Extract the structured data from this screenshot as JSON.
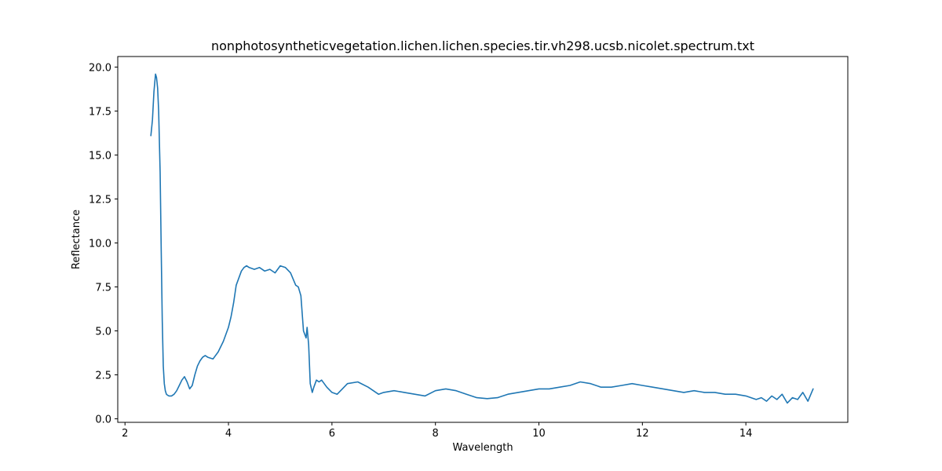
{
  "chart_data": {
    "type": "line",
    "title": "nonphotosyntheticvegetation.lichen.lichen.species.tir.vh298.ucsb.nicolet.spectrum.txt",
    "xlabel": "Wavelength",
    "ylabel": "Reflectance",
    "xlim": [
      1.86,
      15.97
    ],
    "ylim": [
      -0.2,
      20.6
    ],
    "xticks": [
      2,
      4,
      6,
      8,
      10,
      12,
      14
    ],
    "xtick_labels": [
      "2",
      "4",
      "6",
      "8",
      "10",
      "12",
      "14"
    ],
    "yticks": [
      0.0,
      2.5,
      5.0,
      7.5,
      10.0,
      12.5,
      15.0,
      17.5,
      20.0
    ],
    "ytick_labels": [
      "0.0",
      "2.5",
      "5.0",
      "7.5",
      "10.0",
      "12.5",
      "15.0",
      "17.5",
      "20.0"
    ],
    "grid": false,
    "series": [
      {
        "color": "#1f77b4",
        "x": [
          2.5,
          2.53,
          2.56,
          2.59,
          2.61,
          2.63,
          2.65,
          2.68,
          2.7,
          2.72,
          2.74,
          2.76,
          2.78,
          2.8,
          2.82,
          2.85,
          2.9,
          2.95,
          3.0,
          3.05,
          3.1,
          3.15,
          3.2,
          3.25,
          3.3,
          3.35,
          3.4,
          3.45,
          3.5,
          3.55,
          3.6,
          3.7,
          3.8,
          3.9,
          4.0,
          4.05,
          4.1,
          4.15,
          4.2,
          4.25,
          4.3,
          4.35,
          4.4,
          4.5,
          4.6,
          4.7,
          4.8,
          4.9,
          5.0,
          5.1,
          5.2,
          5.3,
          5.35,
          5.4,
          5.45,
          5.5,
          5.52,
          5.55,
          5.58,
          5.62,
          5.65,
          5.7,
          5.75,
          5.8,
          5.9,
          6.0,
          6.1,
          6.2,
          6.3,
          6.5,
          6.7,
          6.9,
          7.0,
          7.2,
          7.4,
          7.6,
          7.8,
          8.0,
          8.2,
          8.4,
          8.6,
          8.8,
          9.0,
          9.2,
          9.4,
          9.6,
          9.8,
          10.0,
          10.2,
          10.4,
          10.6,
          10.8,
          11.0,
          11.2,
          11.4,
          11.6,
          11.8,
          12.0,
          12.2,
          12.4,
          12.6,
          12.8,
          13.0,
          13.2,
          13.4,
          13.6,
          13.8,
          14.0,
          14.2,
          14.3,
          14.4,
          14.5,
          14.6,
          14.7,
          14.8,
          14.9,
          15.0,
          15.1,
          15.2,
          15.3
        ],
        "y": [
          16.1,
          17.0,
          18.6,
          19.6,
          19.4,
          18.8,
          17.5,
          14.0,
          9.5,
          5.6,
          3.0,
          2.0,
          1.6,
          1.4,
          1.35,
          1.3,
          1.3,
          1.4,
          1.6,
          1.9,
          2.2,
          2.4,
          2.1,
          1.7,
          1.9,
          2.5,
          3.0,
          3.3,
          3.5,
          3.6,
          3.5,
          3.4,
          3.8,
          4.4,
          5.2,
          5.8,
          6.6,
          7.6,
          8.0,
          8.4,
          8.6,
          8.7,
          8.6,
          8.5,
          8.6,
          8.4,
          8.5,
          8.3,
          8.7,
          8.6,
          8.3,
          7.6,
          7.5,
          7.0,
          5.0,
          4.6,
          5.2,
          4.2,
          2.0,
          1.5,
          1.8,
          2.2,
          2.1,
          2.2,
          1.8,
          1.5,
          1.4,
          1.7,
          2.0,
          2.1,
          1.8,
          1.4,
          1.5,
          1.6,
          1.5,
          1.4,
          1.3,
          1.6,
          1.7,
          1.6,
          1.4,
          1.2,
          1.15,
          1.2,
          1.4,
          1.5,
          1.6,
          1.7,
          1.7,
          1.8,
          1.9,
          2.1,
          2.0,
          1.8,
          1.8,
          1.9,
          2.0,
          1.9,
          1.8,
          1.7,
          1.6,
          1.5,
          1.6,
          1.5,
          1.5,
          1.4,
          1.4,
          1.3,
          1.1,
          1.2,
          1.0,
          1.3,
          1.1,
          1.4,
          0.9,
          1.2,
          1.1,
          1.5,
          1.0,
          1.7
        ]
      }
    ]
  }
}
